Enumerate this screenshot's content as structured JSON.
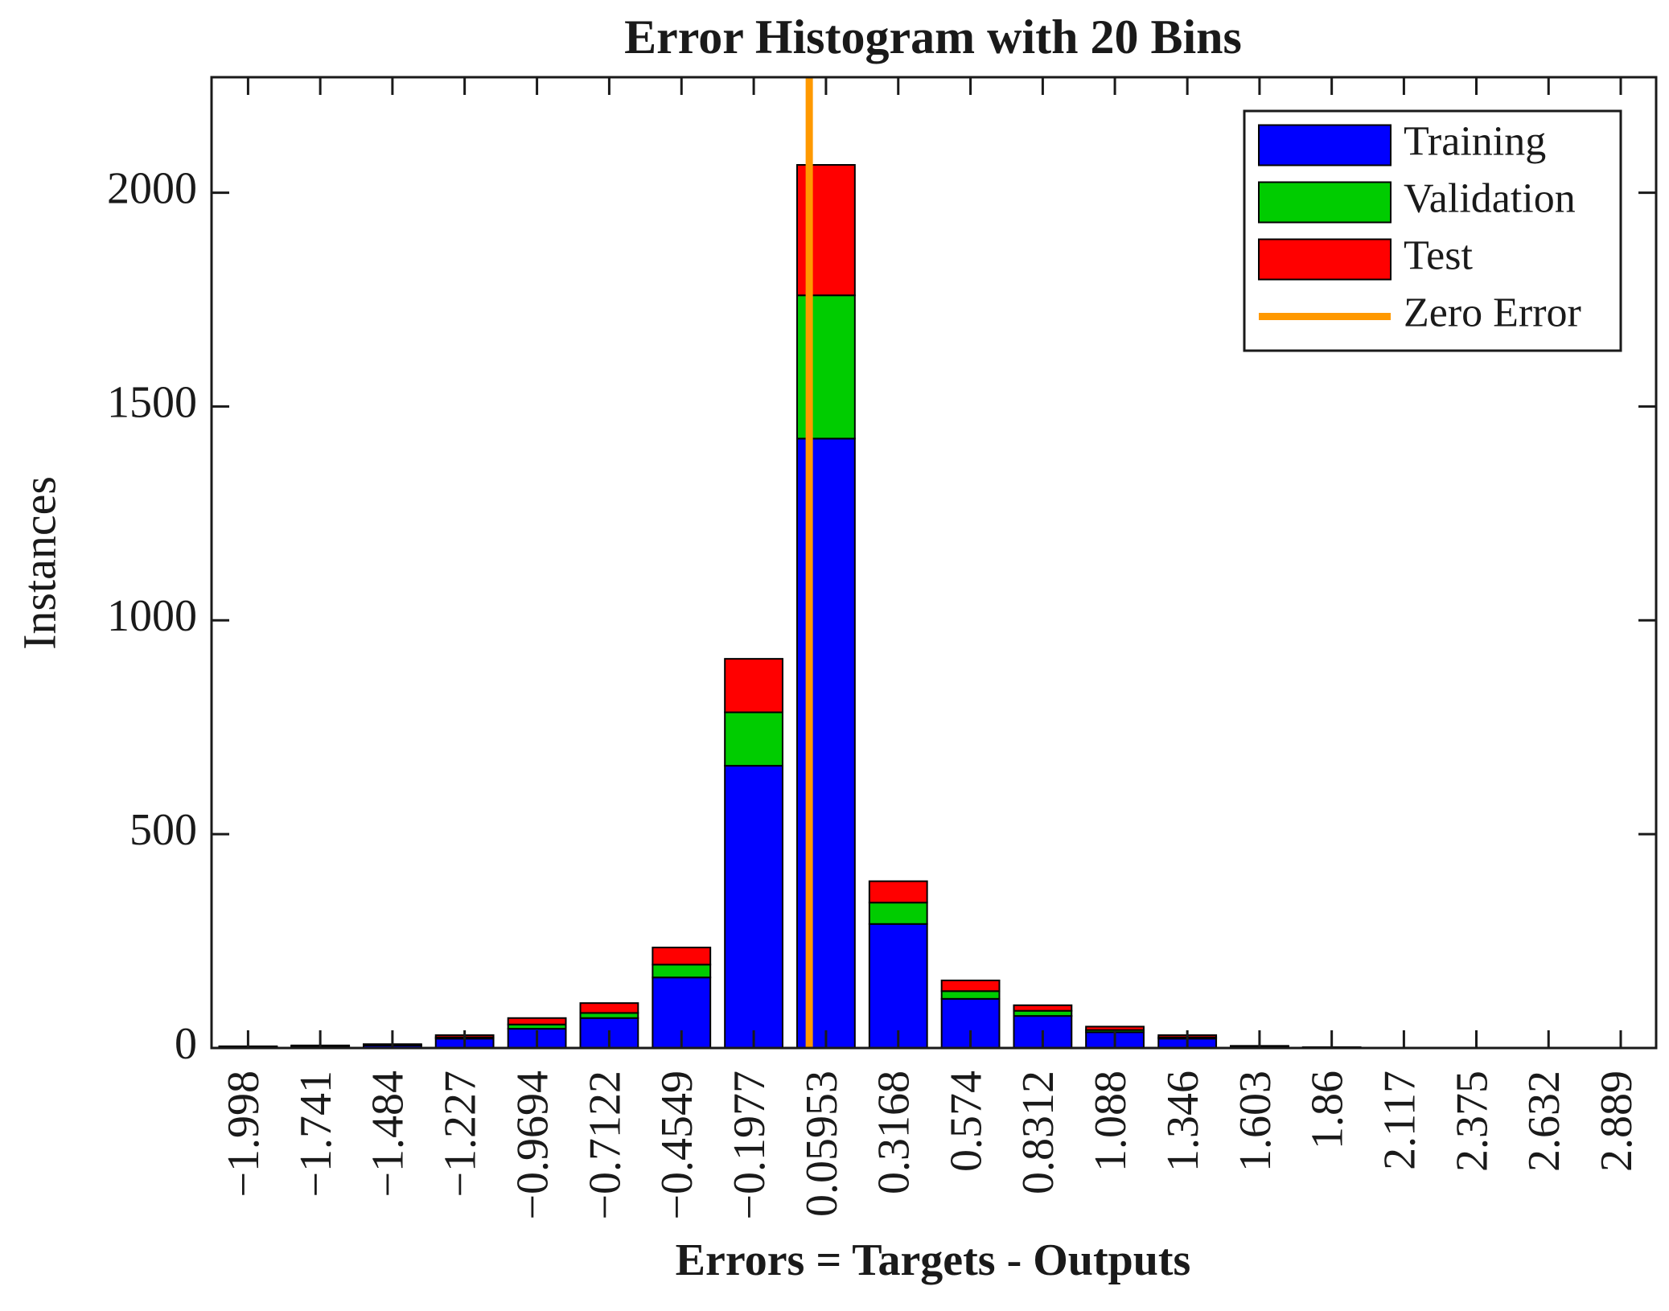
{
  "chart_data": {
    "type": "bar",
    "stacked": true,
    "title": "Error Histogram with 20 Bins",
    "x_label": "Errors = Targets - Outputs",
    "y_label": "Instances",
    "x": [
      -1.998,
      -1.741,
      -1.484,
      -1.227,
      -0.9694,
      -0.7122,
      -0.4549,
      -0.1977,
      0.05953,
      0.3168,
      0.574,
      0.8312,
      1.088,
      1.346,
      1.603,
      1.86,
      2.117,
      2.375,
      2.632,
      2.889
    ],
    "xticks": [
      {
        "value": -1.998,
        "label": "−1.998"
      },
      {
        "value": -1.741,
        "label": "−1.741"
      },
      {
        "value": -1.484,
        "label": "−1.484"
      },
      {
        "value": -1.227,
        "label": "−1.227"
      },
      {
        "value": -0.9694,
        "label": "−0.9694"
      },
      {
        "value": -0.7122,
        "label": "−0.7122"
      },
      {
        "value": -0.4549,
        "label": "−0.4549"
      },
      {
        "value": -0.1977,
        "label": "−0.1977"
      },
      0.05953,
      0.3168,
      0.574,
      0.8312,
      1.088,
      1.346,
      1.603,
      1.86,
      2.117,
      2.375,
      2.632,
      2.889
    ],
    "xlim": [
      -2.128,
      3.015
    ],
    "ylim": [
      0,
      2270
    ],
    "yticks": [
      0,
      500,
      1000,
      1500,
      2000
    ],
    "series": [
      {
        "name": "Training",
        "color": "#0000ff",
        "values": [
          3,
          4,
          6,
          22,
          45,
          70,
          165,
          660,
          1425,
          290,
          115,
          75,
          37,
          22,
          3,
          1,
          0,
          0,
          0,
          0
        ]
      },
      {
        "name": "Validation",
        "color": "#00cc00",
        "values": [
          0,
          1,
          1,
          3,
          10,
          12,
          30,
          125,
          335,
          50,
          18,
          12,
          5,
          3,
          1,
          0,
          0,
          0,
          0,
          0
        ]
      },
      {
        "name": "Test",
        "color": "#ff0000",
        "values": [
          1,
          1,
          2,
          5,
          15,
          23,
          40,
          125,
          305,
          50,
          25,
          13,
          8,
          5,
          1,
          1,
          0,
          0,
          0,
          0
        ]
      }
    ],
    "reference_line": {
      "name": "Zero Error",
      "value": 0,
      "color": "#ff9900"
    },
    "legend": "upper right"
  }
}
